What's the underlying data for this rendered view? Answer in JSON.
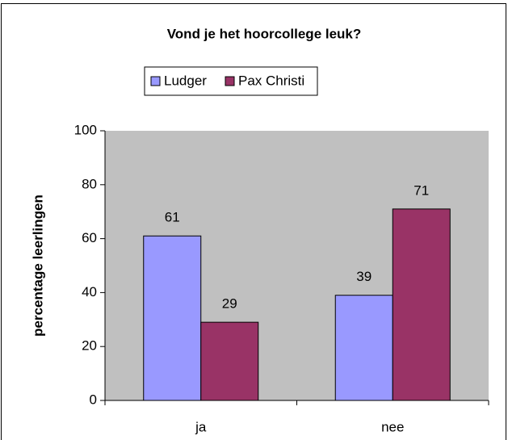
{
  "chart_data": {
    "type": "bar",
    "title": "Vond je het hoorcollege leuk?",
    "y_label": "percentage leerlingen",
    "categories": [
      "ja",
      "nee"
    ],
    "series": [
      {
        "name": "Ludger",
        "color": "#9999ff",
        "values": [
          61,
          39
        ]
      },
      {
        "name": "Pax Christi",
        "color": "#993366",
        "values": [
          29,
          71
        ]
      }
    ],
    "ylim": [
      0,
      100
    ],
    "yticks": [
      0,
      20,
      40,
      60,
      80,
      100
    ],
    "legend": "top",
    "plot_background": "#c0c0c0"
  }
}
